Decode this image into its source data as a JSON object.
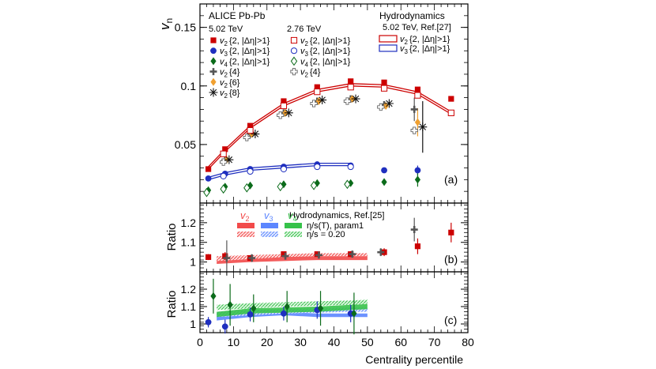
{
  "colors": {
    "v2": "#cc0000",
    "v3": "#1f2fbf",
    "v4": "#0b6b1a",
    "v2_band": "#f24a4a",
    "v3_band": "#5c86ff",
    "v4_band": "#36c24a",
    "nonflow": "#555555",
    "v6": "#f0a030"
  },
  "legend": {
    "experiment": "ALICE Pb-Pb",
    "energy_502": "5.02 TeV",
    "energy_276": "2.76 TeV",
    "hydro_title": "Hydrodynamics",
    "hydro_ref": "5.02 TeV, Ref.[27]",
    "entries_502": [
      {
        "name": "v",
        "sub": "2",
        "suffix": "{2, |Δη|>1}",
        "marker": "square",
        "series": "v2"
      },
      {
        "name": "v",
        "sub": "3",
        "suffix": "{2, |Δη|>1}",
        "marker": "circle",
        "series": "v3"
      },
      {
        "name": "v",
        "sub": "4",
        "suffix": "{2, |Δη|>1}",
        "marker": "diamond",
        "series": "v4"
      },
      {
        "name": "v",
        "sub": "2",
        "suffix": "{4}",
        "marker": "cross",
        "series": "v2_4"
      },
      {
        "name": "v",
        "sub": "2",
        "suffix": "{6}",
        "marker": "diamondfill",
        "series": "v2_6"
      },
      {
        "name": "v",
        "sub": "2",
        "suffix": "{8}",
        "marker": "star",
        "series": "v2_8"
      }
    ],
    "entries_276": [
      {
        "name": "v",
        "sub": "2",
        "suffix": "{2, |Δη|>1}",
        "marker": "osquare"
      },
      {
        "name": "v",
        "sub": "3",
        "suffix": "{2, |Δη|>1}",
        "marker": "ocircle"
      },
      {
        "name": "v",
        "sub": "4",
        "suffix": "{2, |Δη|>1}",
        "marker": "odiamond"
      },
      {
        "name": "v",
        "sub": "2",
        "suffix": "{4}",
        "marker": "ocross"
      }
    ],
    "entries_hydro": [
      {
        "name": "v",
        "sub": "2",
        "suffix": "{2, |Δη|>1}",
        "color": "v2"
      },
      {
        "name": "v",
        "sub": "3",
        "suffix": "{2, |Δη|>1}",
        "color": "v3"
      }
    ],
    "ratio_title": "Hydrodynamics, Ref.[25]",
    "ratio_heads": [
      {
        "name": "v",
        "sub": "2",
        "color": "v2_band"
      },
      {
        "name": "v",
        "sub": "3",
        "color": "v3_band"
      },
      {
        "name": "v",
        "sub": "4",
        "color": "v4_band"
      }
    ],
    "ratio_row1": "η/s(T), param1",
    "ratio_row2": "η/s = 0.20"
  },
  "chart_data": [
    {
      "panel": "(a)",
      "type": "scatter",
      "ylabel": "v",
      "ylabel_sub": "n",
      "ylim": [
        0,
        0.17
      ],
      "yticks": [
        0.05,
        0.1,
        0.15
      ],
      "ytick_labels": [
        "0.05",
        "0.1",
        "0.15"
      ],
      "xlim": [
        0,
        80
      ],
      "series": [
        {
          "name": "v2{2,|Δη|>1} 5.02 TeV",
          "key": "v2",
          "marker": "square",
          "x": [
            2.5,
            7.5,
            15,
            25,
            35,
            45,
            55,
            65,
            75
          ],
          "y": [
            0.029,
            0.046,
            0.066,
            0.087,
            0.099,
            0.104,
            0.103,
            0.097,
            0.089
          ]
        },
        {
          "name": "v3{2,|Δη|>1} 5.02 TeV",
          "key": "v3",
          "marker": "circle",
          "x": [
            2.5,
            7.5,
            15,
            25,
            35,
            45,
            55,
            65
          ],
          "y": [
            0.021,
            0.025,
            0.029,
            0.031,
            0.033,
            0.032,
            0.028,
            0.028
          ]
        },
        {
          "name": "v4{2,|Δη|>1} 5.02 TeV",
          "key": "v4",
          "marker": "diamond",
          "x": [
            2.5,
            7.5,
            15,
            25,
            35,
            45,
            55,
            65
          ],
          "y": [
            0.011,
            0.014,
            0.015,
            0.016,
            0.017,
            0.017,
            0.018,
            0.02
          ]
        },
        {
          "name": "v2{4} 5.02 TeV",
          "key": "v2_4",
          "marker": "cross",
          "x": [
            7.5,
            15,
            25,
            35,
            45,
            55,
            64
          ],
          "y": [
            0.037,
            0.059,
            0.077,
            0.087,
            0.089,
            0.084,
            0.08
          ]
        },
        {
          "name": "v2{6} 5.02 TeV",
          "key": "v2_6",
          "marker": "diamondfill",
          "x": [
            8,
            15.5,
            25.5,
            35.5,
            45.5,
            55.5,
            65
          ],
          "y": [
            0.037,
            0.059,
            0.077,
            0.087,
            0.089,
            0.083,
            0.069
          ]
        },
        {
          "name": "v2{8} 5.02 TeV",
          "key": "v2_8",
          "marker": "star",
          "x": [
            8.7,
            16.5,
            26.5,
            36.5,
            46.5,
            56.5,
            66.5
          ],
          "y": [
            0.037,
            0.059,
            0.077,
            0.088,
            0.089,
            0.085,
            0.065
          ]
        },
        {
          "name": "v2{2,|Δη|>1} 2.76 TeV",
          "key": "v2",
          "marker": "osquare",
          "x": [
            7,
            15,
            25,
            35,
            45,
            55,
            65,
            75
          ],
          "y": [
            0.042,
            0.062,
            0.083,
            0.095,
            0.099,
            0.098,
            0.092,
            0.077
          ]
        },
        {
          "name": "v3{2,|Δη|>1} 2.76 TeV",
          "key": "v3",
          "marker": "ocircle",
          "x": [
            7,
            15,
            25,
            35,
            45
          ],
          "y": [
            0.023,
            0.027,
            0.029,
            0.031,
            0.031
          ]
        },
        {
          "name": "v4{2,|Δη|>1} 2.76 TeV",
          "key": "v4",
          "marker": "odiamond",
          "x": [
            2,
            7,
            14,
            24,
            34,
            44
          ],
          "y": [
            0.009,
            0.012,
            0.013,
            0.014,
            0.015,
            0.016
          ]
        },
        {
          "name": "v2{4} 2.76 TeV",
          "key": "nonflow",
          "marker": "ocross",
          "x": [
            7,
            14,
            24,
            34,
            44,
            54,
            64
          ],
          "y": [
            0.035,
            0.056,
            0.075,
            0.085,
            0.087,
            0.082,
            0.062
          ]
        }
      ],
      "error_bars": [
        {
          "series": "v2_8",
          "x": 66.5,
          "y": 0.065,
          "err": 0.022
        },
        {
          "series": "v2_6",
          "x": 65,
          "y": 0.069,
          "err": 0.012
        },
        {
          "series": "v3",
          "x": 65,
          "y": 0.028,
          "err": 0.004
        },
        {
          "series": "v4",
          "x": 65,
          "y": 0.02,
          "err": 0.006
        },
        {
          "series": "v2_4",
          "x": 64,
          "y": 0.08,
          "err": 0.01
        }
      ],
      "hydro_curves": [
        {
          "key": "v2",
          "x": [
            2.5,
            7.5,
            15,
            25,
            35,
            45,
            55,
            65,
            75
          ],
          "y": [
            0.031,
            0.046,
            0.066,
            0.085,
            0.097,
            0.102,
            0.101,
            0.095,
            0.078
          ]
        },
        {
          "key": "v3",
          "x": [
            2.5,
            7.5,
            15,
            25,
            35,
            45
          ],
          "y": [
            0.022,
            0.026,
            0.03,
            0.032,
            0.034,
            0.034
          ]
        }
      ]
    },
    {
      "panel": "(b)",
      "type": "scatter",
      "ylabel": "Ratio",
      "ylim": [
        0.95,
        1.3
      ],
      "yticks": [
        1,
        1.1,
        1.2
      ],
      "ytick_labels": [
        "1",
        "1.1",
        "1.2"
      ],
      "xlim": [
        0,
        80
      ],
      "series": [
        {
          "name": "v2{2} ratio",
          "key": "v2",
          "marker": "square",
          "x": [
            2.5,
            7.5,
            15,
            25,
            35,
            45,
            55,
            65,
            75
          ],
          "y": [
            1.025,
            1.03,
            1.02,
            1.04,
            1.04,
            1.04,
            1.05,
            1.08,
            1.15
          ],
          "err": [
            0.015,
            0.02,
            0.015,
            0.01,
            0.01,
            0.015,
            0.02,
            0.04,
            0.05
          ]
        },
        {
          "name": "v2{4} ratio",
          "key": "nonflow",
          "marker": "cross",
          "x": [
            8,
            15.5,
            25.5,
            35.5,
            45.5,
            54,
            64
          ],
          "y": [
            1.02,
            1.02,
            1.03,
            1.035,
            1.04,
            1.05,
            1.165
          ],
          "err": [
            0.09,
            0.02,
            0.015,
            0.015,
            0.015,
            0.02,
            0.06
          ]
        }
      ],
      "bands": [
        {
          "key": "v2_band",
          "style": "solid",
          "x": [
            5,
            15,
            25,
            35,
            45,
            50
          ],
          "lo": [
            0.99,
            1.0,
            1.005,
            1.01,
            1.01,
            1.01
          ],
          "hi": [
            1.02,
            1.025,
            1.03,
            1.03,
            1.03,
            1.03
          ]
        },
        {
          "key": "v2_band",
          "style": "hatched",
          "x": [
            5,
            15,
            25,
            35,
            45,
            50
          ],
          "lo": [
            1.005,
            1.015,
            1.025,
            1.03,
            1.03,
            1.03
          ],
          "hi": [
            1.03,
            1.035,
            1.04,
            1.045,
            1.045,
            1.045
          ]
        }
      ]
    },
    {
      "panel": "(c)",
      "type": "scatter",
      "ylabel": "Ratio",
      "ylim": [
        0.95,
        1.3
      ],
      "yticks": [
        1,
        1.1,
        1.2
      ],
      "ytick_labels": [
        "1",
        "1.1",
        "1.2"
      ],
      "xlim": [
        0,
        80
      ],
      "xlabel": "Centrality percentile",
      "xticks": [
        0,
        10,
        20,
        30,
        40,
        50,
        60,
        70,
        80
      ],
      "xtick_labels": [
        "0",
        "10",
        "20",
        "30",
        "40",
        "50",
        "60",
        "70",
        "80"
      ],
      "series": [
        {
          "name": "v3 ratio",
          "key": "v3",
          "marker": "circle",
          "x": [
            2.5,
            7.5,
            15,
            25,
            35,
            45
          ],
          "y": [
            1.01,
            0.985,
            1.055,
            1.06,
            1.08,
            1.06
          ],
          "err": [
            0.03,
            0.04,
            0.04,
            0.04,
            0.05,
            0.05
          ]
        },
        {
          "name": "v4 ratio",
          "key": "v4",
          "marker": "diamond",
          "x": [
            4,
            9,
            16,
            26,
            36,
            46
          ],
          "y": [
            1.16,
            1.11,
            1.09,
            1.1,
            1.09,
            1.06
          ],
          "err": [
            0.1,
            0.12,
            0.08,
            0.09,
            0.1,
            0.12
          ]
        }
      ],
      "bands": [
        {
          "key": "v3_band",
          "style": "solid",
          "x": [
            5,
            15,
            25,
            35,
            45,
            50
          ],
          "lo": [
            1.02,
            1.04,
            1.05,
            1.04,
            1.04,
            1.04
          ],
          "hi": [
            1.05,
            1.07,
            1.07,
            1.06,
            1.06,
            1.06
          ]
        },
        {
          "key": "v3_band",
          "style": "hatched",
          "x": [
            5,
            15,
            25,
            35,
            45,
            50
          ],
          "lo": [
            1.04,
            1.05,
            1.06,
            1.065,
            1.07,
            1.07
          ],
          "hi": [
            1.07,
            1.08,
            1.085,
            1.09,
            1.095,
            1.095
          ]
        },
        {
          "key": "v4_band",
          "style": "solid",
          "x": [
            5,
            15,
            25,
            35,
            45,
            50
          ],
          "lo": [
            1.04,
            1.06,
            1.065,
            1.07,
            1.08,
            1.085
          ],
          "hi": [
            1.07,
            1.09,
            1.095,
            1.1,
            1.11,
            1.115
          ]
        },
        {
          "key": "v4_band",
          "style": "hatched",
          "x": [
            5,
            15,
            25,
            35,
            45,
            50
          ],
          "lo": [
            1.08,
            1.09,
            1.1,
            1.105,
            1.11,
            1.115
          ],
          "hi": [
            1.11,
            1.12,
            1.125,
            1.13,
            1.135,
            1.14
          ]
        }
      ]
    }
  ]
}
